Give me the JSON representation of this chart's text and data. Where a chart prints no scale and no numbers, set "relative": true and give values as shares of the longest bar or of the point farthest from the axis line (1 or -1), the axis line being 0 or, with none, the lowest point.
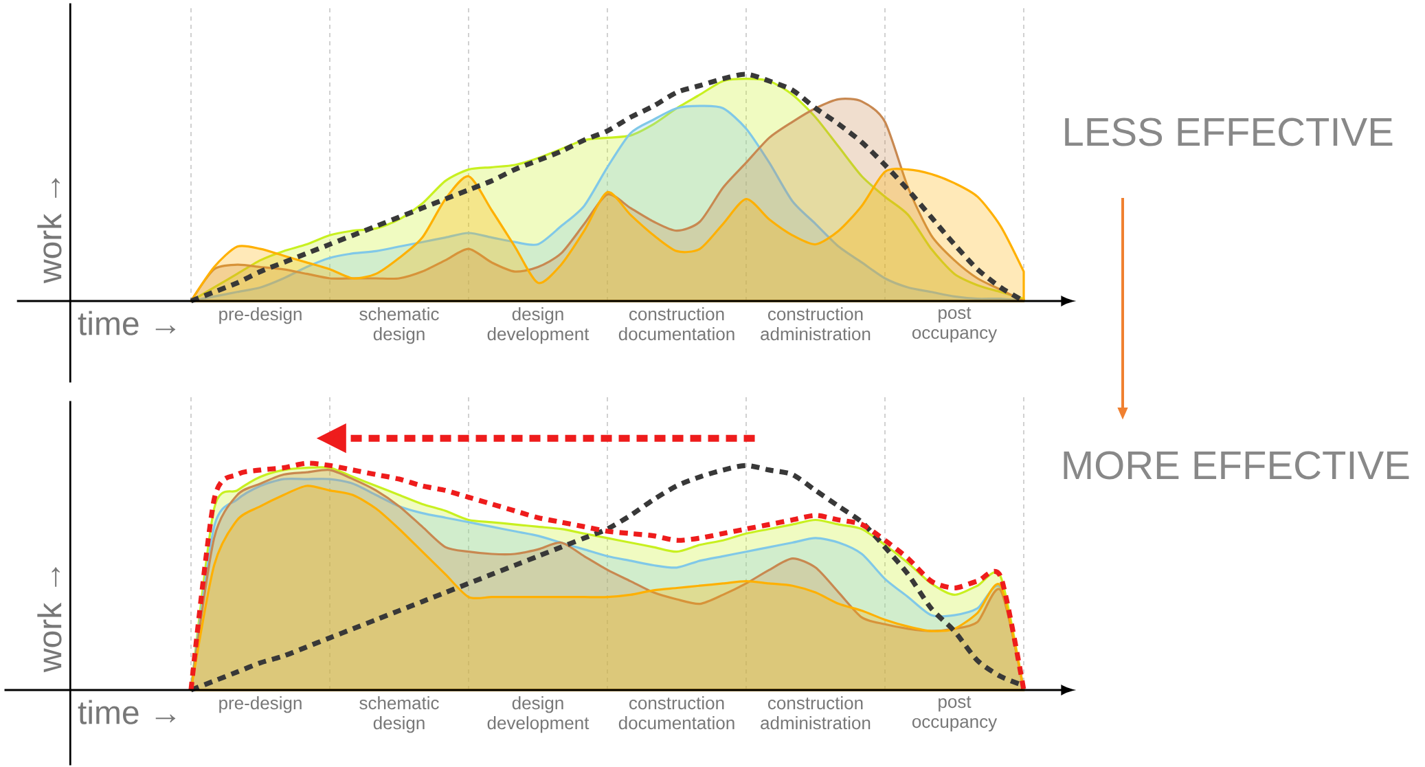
{
  "chart_data": [
    {
      "type": "area",
      "relative": true,
      "xlabel": "time →",
      "ylabel": "work →",
      "categories": [
        null,
        null,
        null,
        "pre-design",
        null,
        null,
        null,
        null,
        null,
        "schematic design",
        null,
        null,
        null,
        null,
        null,
        "design development",
        null,
        null,
        null,
        null,
        null,
        "construction documentation",
        null,
        null,
        null,
        null,
        null,
        "construction administration",
        null,
        null,
        null,
        null,
        null,
        "post occupancy",
        null,
        null,
        null
      ],
      "grid": "x",
      "annotations": [
        "LESS EFFECTIVE"
      ],
      "series": [
        {
          "color": "#c8f020",
          "values": [
            0,
            0.06,
            0.12,
            0.18,
            0.22,
            0.25,
            0.29,
            0.31,
            0.32,
            0.36,
            0.43,
            0.53,
            0.58,
            0.59,
            0.6,
            0.63,
            0.67,
            0.71,
            0.72,
            0.73,
            0.78,
            0.85,
            0.91,
            0.97,
            0.98,
            0.97,
            0.91,
            0.81,
            0.68,
            0.55,
            0.46,
            0.38,
            0.23,
            0.12,
            0.07,
            0.04,
            0.01
          ]
        },
        {
          "color": "#80c8e8",
          "values": [
            0,
            0.02,
            0.04,
            0.06,
            0.1,
            0.15,
            0.19,
            0.21,
            0.22,
            0.24,
            0.26,
            0.28,
            0.3,
            0.28,
            0.26,
            0.25,
            0.33,
            0.42,
            0.59,
            0.74,
            0.8,
            0.85,
            0.86,
            0.85,
            0.76,
            0.61,
            0.44,
            0.34,
            0.24,
            0.17,
            0.1,
            0.06,
            0.04,
            0.02,
            0.01,
            0.01,
            0
          ]
        },
        {
          "color": "#c88850",
          "values": [
            0,
            0.14,
            0.16,
            0.15,
            0.14,
            0.12,
            0.1,
            0.1,
            0.1,
            0.1,
            0.13,
            0.18,
            0.23,
            0.17,
            0.13,
            0.15,
            0.21,
            0.34,
            0.47,
            0.41,
            0.35,
            0.31,
            0.35,
            0.5,
            0.61,
            0.72,
            0.79,
            0.85,
            0.89,
            0.88,
            0.79,
            0.5,
            0.29,
            0.18,
            0.1,
            0.05,
            0
          ]
        },
        {
          "color": "#ffb000",
          "values": [
            0,
            0.15,
            0.24,
            0.23,
            0.2,
            0.17,
            0.14,
            0.1,
            0.12,
            0.19,
            0.28,
            0.45,
            0.55,
            0.4,
            0.24,
            0.08,
            0.16,
            0.31,
            0.48,
            0.38,
            0.29,
            0.22,
            0.23,
            0.34,
            0.45,
            0.36,
            0.29,
            0.25,
            0.31,
            0.42,
            0.57,
            0.58,
            0.56,
            0.52,
            0.46,
            0.33,
            0.13
          ]
        },
        {
          "type": "line",
          "line_style": "dashed",
          "color": "#383838",
          "values": [
            0,
            0.04,
            0.08,
            0.13,
            0.17,
            0.21,
            0.25,
            0.29,
            0.33,
            0.37,
            0.41,
            0.45,
            0.49,
            0.53,
            0.58,
            0.62,
            0.66,
            0.71,
            0.75,
            0.81,
            0.86,
            0.92,
            0.95,
            0.98,
            1.0,
            0.97,
            0.93,
            0.85,
            0.78,
            0.7,
            0.6,
            0.49,
            0.37,
            0.25,
            0.14,
            0.06,
            0
          ]
        }
      ]
    },
    {
      "type": "area",
      "relative": true,
      "xlabel": "time →",
      "ylabel": "work →",
      "categories": [
        null,
        null,
        null,
        "pre-design",
        null,
        null,
        null,
        null,
        null,
        "schematic design",
        null,
        null,
        null,
        null,
        null,
        "design development",
        null,
        null,
        null,
        null,
        null,
        "construction documentation",
        null,
        null,
        null,
        null,
        null,
        "construction administration",
        null,
        null,
        null,
        null,
        null,
        "post occupancy",
        null,
        null,
        null
      ],
      "grid": "x",
      "annotations": [
        "MORE EFFECTIVE"
      ],
      "series": [
        {
          "color": "#c8f020",
          "values": [
            0,
            0.8,
            0.88,
            0.94,
            0.97,
            0.98,
            0.98,
            0.94,
            0.9,
            0.86,
            0.82,
            0.79,
            0.75,
            0.74,
            0.73,
            0.72,
            0.71,
            0.69,
            0.67,
            0.65,
            0.63,
            0.61,
            0.64,
            0.66,
            0.69,
            0.71,
            0.73,
            0.75,
            0.73,
            0.71,
            0.64,
            0.56,
            0.47,
            0.42,
            0.46,
            0.5,
            0
          ]
        },
        {
          "color": "#80c8e8",
          "values": [
            0,
            0.72,
            0.84,
            0.9,
            0.93,
            0.93,
            0.93,
            0.91,
            0.86,
            0.81,
            0.78,
            0.76,
            0.74,
            0.72,
            0.7,
            0.68,
            0.65,
            0.62,
            0.59,
            0.57,
            0.55,
            0.54,
            0.57,
            0.59,
            0.61,
            0.63,
            0.65,
            0.67,
            0.65,
            0.6,
            0.49,
            0.41,
            0.33,
            0.33,
            0.36,
            0.45,
            0
          ]
        },
        {
          "color": "#c88850",
          "values": [
            0,
            0.67,
            0.86,
            0.91,
            0.95,
            0.96,
            0.97,
            0.93,
            0.88,
            0.81,
            0.72,
            0.63,
            0.61,
            0.6,
            0.6,
            0.62,
            0.65,
            0.59,
            0.53,
            0.48,
            0.43,
            0.4,
            0.38,
            0.42,
            0.47,
            0.53,
            0.58,
            0.54,
            0.43,
            0.32,
            0.29,
            0.27,
            0.26,
            0.27,
            0.3,
            0.44,
            0
          ]
        },
        {
          "color": "#ffb000",
          "values": [
            0,
            0.55,
            0.75,
            0.81,
            0.86,
            0.9,
            0.88,
            0.86,
            0.8,
            0.71,
            0.61,
            0.51,
            0.41,
            0.41,
            0.41,
            0.41,
            0.41,
            0.41,
            0.41,
            0.42,
            0.44,
            0.45,
            0.46,
            0.47,
            0.48,
            0.47,
            0.46,
            0.43,
            0.38,
            0.35,
            0.31,
            0.28,
            0.26,
            0.27,
            0.34,
            0.46,
            0
          ]
        },
        {
          "type": "line",
          "line_style": "dashed",
          "color": "#383838",
          "values": [
            0,
            0.04,
            0.08,
            0.12,
            0.15,
            0.19,
            0.23,
            0.27,
            0.31,
            0.35,
            0.39,
            0.43,
            0.47,
            0.51,
            0.55,
            0.59,
            0.63,
            0.67,
            0.71,
            0.77,
            0.84,
            0.9,
            0.94,
            0.97,
            0.99,
            0.97,
            0.95,
            0.88,
            0.81,
            0.74,
            0.63,
            0.51,
            0.36,
            0.26,
            0.13,
            0.06,
            0.02
          ]
        },
        {
          "type": "line",
          "line_style": "dashed",
          "color": "#ee1c1c",
          "values": [
            0,
            0.84,
            0.95,
            0.97,
            0.98,
            1.0,
            0.99,
            0.97,
            0.95,
            0.93,
            0.9,
            0.88,
            0.85,
            0.82,
            0.79,
            0.76,
            0.74,
            0.72,
            0.7,
            0.69,
            0.68,
            0.66,
            0.67,
            0.69,
            0.71,
            0.73,
            0.75,
            0.77,
            0.75,
            0.73,
            0.66,
            0.58,
            0.48,
            0.45,
            0.48,
            0.5,
            0
          ]
        }
      ]
    }
  ]
}
